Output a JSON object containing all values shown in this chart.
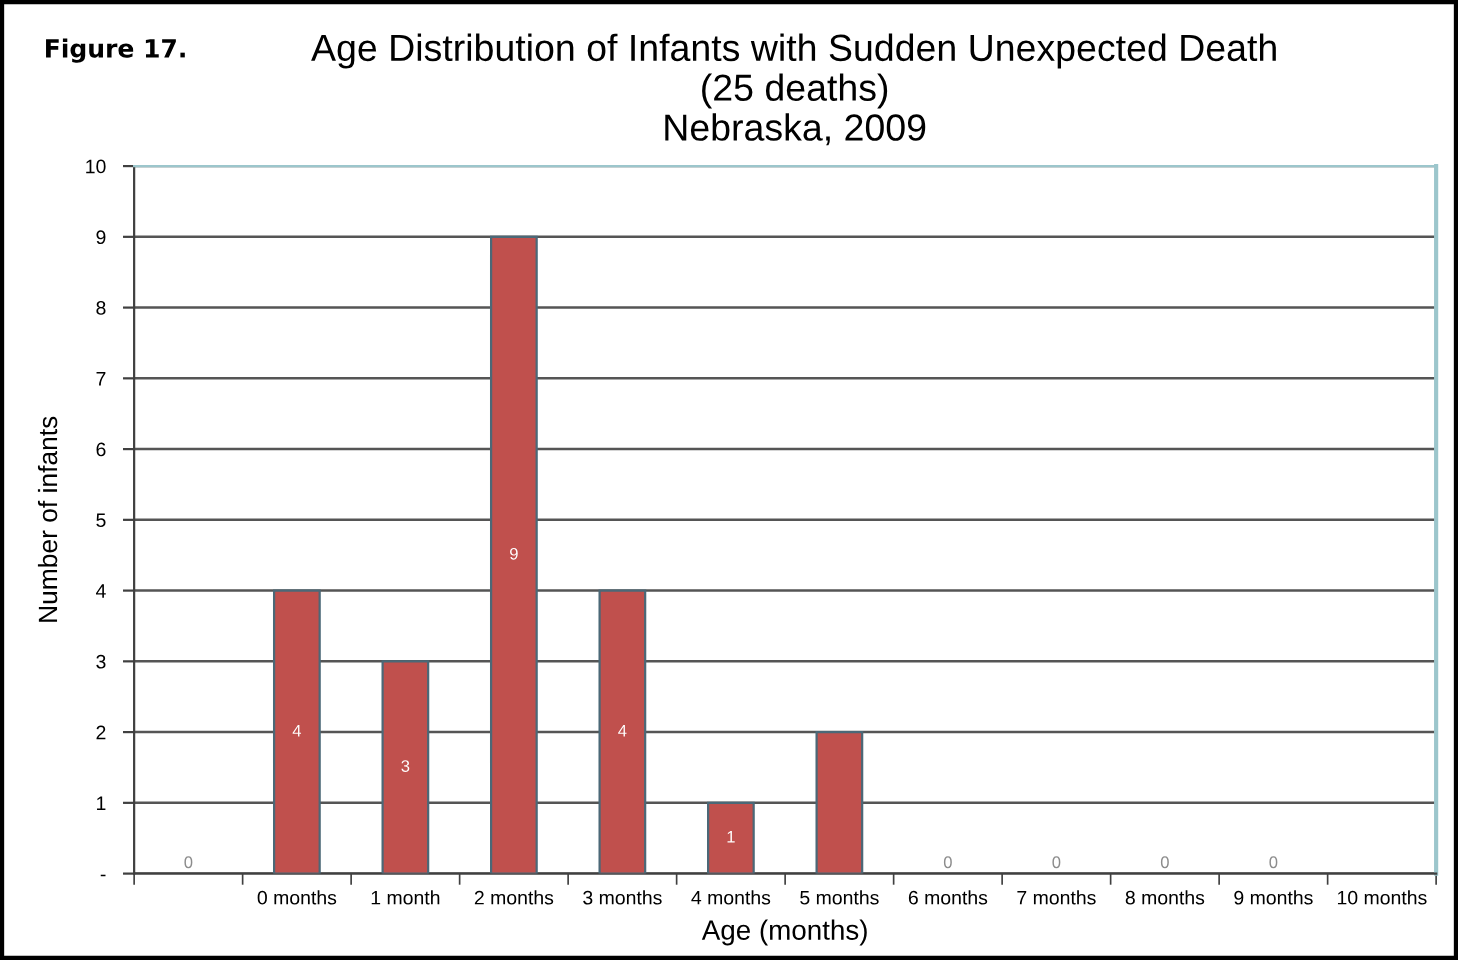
{
  "chart_data": {
    "type": "bar",
    "title": "Age Distribution of Infants with Sudden Unexpected Death\n(25 deaths)\nNebraska, 2009",
    "xlabel": "Age (months)",
    "ylabel": "Number of infants",
    "annotations": [
      "Figure 17."
    ],
    "categories": [
      null,
      "0 months",
      "1 month",
      "2 months",
      "3 months",
      "4 months",
      "5 months",
      "6 months",
      "7 months",
      "8 months",
      "9 months",
      "10 months"
    ],
    "values": [
      0,
      4,
      3,
      9,
      4,
      1,
      2,
      0,
      0,
      0,
      0,
      0
    ],
    "color": "#c0504d",
    "value_labels": [
      "0",
      "4",
      "3",
      "9",
      "4",
      "1",
      null,
      "0",
      "0",
      "0",
      "0",
      null
    ],
    "ylim": [
      0,
      10
    ],
    "yticks": [
      {
        "value": 0,
        "label": "-"
      },
      1,
      2,
      3,
      4,
      5,
      6,
      7,
      8,
      9,
      10
    ],
    "grid": "y",
    "legend": false
  }
}
